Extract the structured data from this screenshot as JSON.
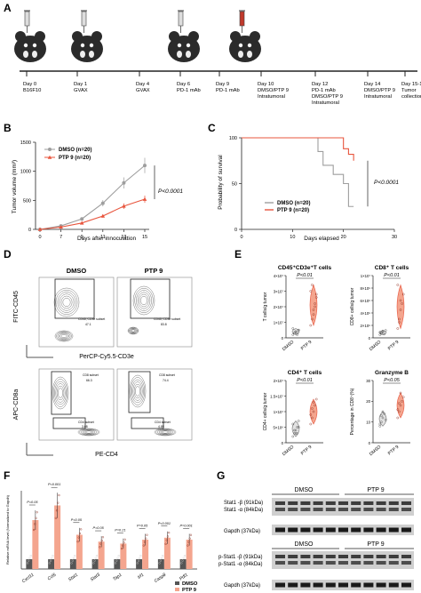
{
  "panels": {
    "A": "A",
    "B": "B",
    "C": "C",
    "D": "D",
    "E": "E",
    "F": "F",
    "G": "G"
  },
  "timeline": {
    "events": [
      {
        "day": "Day 0",
        "l2": "B16F10",
        "l3": "",
        "l4": ""
      },
      {
        "day": "Day 1",
        "l2": "GVAX",
        "l3": "",
        "l4": ""
      },
      {
        "day": "Day 4",
        "l2": "GVAX",
        "l3": "",
        "l4": ""
      },
      {
        "day": "Day 6",
        "l2": "PD-1 mAb",
        "l3": "",
        "l4": ""
      },
      {
        "day": "Day 9",
        "l2": "PD-1 mAb",
        "l3": "",
        "l4": ""
      },
      {
        "day": "Day 10",
        "l2": "DMSO/PTP 9",
        "l3": "Intratumoral",
        "l4": ""
      },
      {
        "day": "Day 12",
        "l2": "PD-1 mAb",
        "l3": "DMSO/PTP 9",
        "l4": "Intratumoral"
      },
      {
        "day": "Day 14",
        "l2": "DMSO/PTP 9",
        "l3": "Intratumoral",
        "l4": ""
      },
      {
        "day": "Day 15-18",
        "l2": "Tumor",
        "l3": "collection",
        "l4": ""
      }
    ]
  },
  "colors": {
    "dmso": "#9e9e9e",
    "ptp9": "#e8553d",
    "ptp9_light": "#f4a58e",
    "dark": "#333333"
  },
  "chart_data": [
    {
      "type": "line",
      "id": "B",
      "x": [
        0,
        7,
        9,
        11,
        13,
        15
      ],
      "series": [
        {
          "name": "DMSO (n=20)",
          "values": [
            0,
            60,
            180,
            450,
            800,
            1100
          ]
        },
        {
          "name": "PTP 9 (n=20)",
          "values": [
            0,
            40,
            110,
            230,
            400,
            520
          ]
        }
      ],
      "xlabel": "Days after innoculation",
      "ylabel": "Tumor volume (mm³)",
      "ylim": [
        0,
        1500
      ],
      "yticks": [
        0,
        500,
        1000,
        1500
      ],
      "xticks": [
        0,
        7,
        9,
        11,
        13,
        15
      ],
      "annotation": "P<0.0001"
    },
    {
      "type": "line",
      "id": "C",
      "series": [
        {
          "name": "DMSO (n=20)",
          "points": [
            [
              0,
              100
            ],
            [
              14,
              100
            ],
            [
              15,
              85
            ],
            [
              16,
              70
            ],
            [
              18,
              60
            ],
            [
              20,
              50
            ],
            [
              21,
              25
            ],
            [
              22,
              25
            ]
          ]
        },
        {
          "name": "PTP 9 (n=20)",
          "points": [
            [
              0,
              100
            ],
            [
              18,
              100
            ],
            [
              20,
              88
            ],
            [
              21,
              82
            ],
            [
              22,
              75
            ]
          ]
        }
      ],
      "xlabel": "Days elapsed",
      "ylabel": "Probability of survival",
      "xlim": [
        0,
        30
      ],
      "ylim": [
        0,
        100
      ],
      "xticks": [
        0,
        10,
        20,
        30
      ],
      "yticks": [
        0,
        50,
        100
      ],
      "annotation": "P<0.0001"
    },
    {
      "type": "scatter",
      "id": "E",
      "subplots": [
        {
          "title": "CD45⁺CD3e⁺T cells",
          "ylabel": "T cells/g tumor",
          "categories": [
            "DMSO",
            "PTP 9"
          ],
          "pval": "P<0.01",
          "yticks": [
            "0",
            "1×10⁷",
            "2×10⁷",
            "3×10⁷",
            "4×10⁷"
          ],
          "ymax": 4,
          "dmso": [
            0.2,
            0.3,
            0.4,
            0.3,
            0.5,
            0.6,
            0.3,
            0.4,
            0.2,
            0.5
          ],
          "ptp9": [
            0.8,
            1.2,
            1.8,
            2.2,
            2.6,
            3.0,
            3.4,
            1.5,
            2.0,
            2.8
          ]
        },
        {
          "title": "CD8⁺ T cells",
          "ylabel": "CD8+ cells/g tumor",
          "categories": [
            "DMSO",
            "PTP 9"
          ],
          "pval": "P<0.01",
          "yticks": [
            "0",
            "2×10⁶",
            "4×10⁶",
            "6×10⁶",
            "8×10⁶",
            "1×10⁷"
          ],
          "ymax": 10,
          "dmso": [
            0.5,
            0.8,
            1.0,
            0.6,
            1.2,
            0.9,
            0.7,
            1.1
          ],
          "ptp9": [
            1.5,
            3.0,
            4.5,
            5.5,
            7.0,
            8.5,
            2.5,
            6.0
          ]
        },
        {
          "title": "CD4⁺ T cells",
          "ylabel": "CD4+ cells/g tumor",
          "categories": [
            "DMSO",
            "PTP 9"
          ],
          "pval": "P<0.01",
          "yticks": [
            "0",
            "5×10⁶",
            "1×10⁷",
            "1.5×10⁷",
            "2×10⁷"
          ],
          "ymax": 20,
          "dmso": [
            2,
            3,
            4,
            3,
            5,
            6,
            4,
            3,
            5,
            7
          ],
          "ptp9": [
            6,
            8,
            10,
            12,
            14,
            9,
            11,
            13
          ]
        },
        {
          "title": "Granzyme B",
          "ylabel": "Percentage in CD8⁺(%)",
          "categories": [
            "DMSO",
            "PTP 9"
          ],
          "pval": "P<0.05",
          "yticks": [
            "0",
            "10",
            "20",
            "30"
          ],
          "ymax": 30,
          "dmso": [
            8,
            10,
            12,
            14,
            11,
            9,
            13,
            15
          ],
          "ptp9": [
            12,
            15,
            18,
            20,
            22,
            16,
            19,
            24
          ]
        }
      ]
    },
    {
      "type": "bar",
      "id": "F",
      "categories": [
        "Cxcl11",
        "Ccl5",
        "Stat1",
        "Stat3",
        "Tap1",
        "Irf1",
        "Casp8",
        "Pdl1"
      ],
      "series": [
        {
          "name": "DMSO",
          "values": [
            1,
            1,
            1,
            1,
            1,
            1,
            1,
            1
          ]
        },
        {
          "name": "PTP 9",
          "values": [
            5,
            6.5,
            3.5,
            2.8,
            2.6,
            3.0,
            3.2,
            3.0
          ]
        }
      ],
      "pvals": [
        "P=0.05",
        "P=0.001",
        "P=0.05",
        "P=0.05",
        "P=0.21",
        "P=0.05",
        "P<0.001",
        "P=0.001"
      ],
      "ylabel": "Relative mRNA level (Normalized to Gapdh)",
      "ylim": [
        0,
        8
      ]
    }
  ],
  "flow": {
    "cond_dmso": "DMSO",
    "cond_ptp9": "PTP 9",
    "y_top": "FITC-CD45",
    "x_top": "PerCP-Cy5.5-CD3e",
    "y_bot": "APC-CD8a",
    "x_bot": "PE-CD4",
    "gate_top_label": "CD45, CD3e subset",
    "gate_top_dmso_val": "47.1",
    "gate_top_ptp9_val": "83.8",
    "gate_cd8_label": "CD8 subset",
    "gate_cd8_dmso_val": "66.3",
    "gate_cd8_ptp9_val": "74.4",
    "gate_cd4_label": "CD4 subset",
    "gate_cd4_dmso_val": "3.68",
    "gate_cd4_ptp9_val": "4.89"
  },
  "blot": {
    "dmso": "DMSO",
    "ptp9": "PTP 9",
    "band1": "Stat1 -β (91kDa)",
    "band2": "Stat1 -α (84kDa)",
    "band3": "Gapdh (37kDa)",
    "band4": "p-Stat1 -β (91kDa)",
    "band5": "p-Stat1 -α (84kDa)",
    "band6": "Gapdh (37kDa)"
  }
}
